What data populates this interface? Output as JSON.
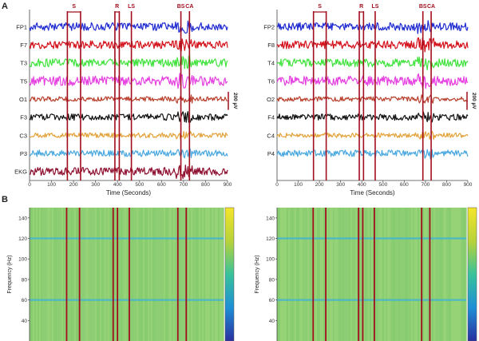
{
  "panel_labels": {
    "a": "A",
    "b": "B"
  },
  "chart_data": [
    {
      "type": "line",
      "panel": "A-left",
      "xlabel": "Time (Seconds)",
      "xlim": [
        0,
        900
      ],
      "xticks": [
        0,
        100,
        200,
        300,
        400,
        500,
        600,
        700,
        800,
        900
      ],
      "scale_bar": "200 µV",
      "series": [
        {
          "name": "FP1",
          "color": "#1f2bd1"
        },
        {
          "name": "F7",
          "color": "#d4121c"
        },
        {
          "name": "T3",
          "color": "#42e23f"
        },
        {
          "name": "T5",
          "color": "#e63fe0"
        },
        {
          "name": "O1",
          "color": "#b8402c"
        },
        {
          "name": "F3",
          "color": "#111111"
        },
        {
          "name": "C3",
          "color": "#e3a23a"
        },
        {
          "name": "P3",
          "color": "#4aa8e0"
        },
        {
          "name": "EKG",
          "color": "#8e1030"
        }
      ],
      "event_markers": [
        {
          "label": "S",
          "times": [
            172,
            232
          ]
        },
        {
          "label": "R",
          "times": [
            388,
            408
          ]
        },
        {
          "label": "LS",
          "times": [
            463
          ]
        },
        {
          "label": "BS",
          "times": [
            688
          ]
        },
        {
          "label": "CA",
          "times": [
            727
          ]
        }
      ]
    },
    {
      "type": "line",
      "panel": "A-right",
      "xlabel": "Time (Seconds)",
      "xlim": [
        0,
        900
      ],
      "xticks": [
        0,
        100,
        200,
        300,
        400,
        500,
        600,
        700,
        800,
        900
      ],
      "scale_bar": "200 µV",
      "series": [
        {
          "name": "FP2",
          "color": "#1f2bd1"
        },
        {
          "name": "F8",
          "color": "#d4121c"
        },
        {
          "name": "T4",
          "color": "#42e23f"
        },
        {
          "name": "T6",
          "color": "#e63fe0"
        },
        {
          "name": "O2",
          "color": "#b8402c"
        },
        {
          "name": "F4",
          "color": "#111111"
        },
        {
          "name": "C4",
          "color": "#e3a23a"
        },
        {
          "name": "P4",
          "color": "#4aa8e0"
        }
      ],
      "event_markers": [
        {
          "label": "S",
          "times": [
            172,
            232
          ]
        },
        {
          "label": "R",
          "times": [
            388,
            408
          ]
        },
        {
          "label": "LS",
          "times": [
            463
          ]
        },
        {
          "label": "BS",
          "times": [
            688
          ]
        },
        {
          "label": "CA",
          "times": [
            727
          ]
        }
      ]
    },
    {
      "type": "heatmap",
      "panel": "B-left",
      "ylabel": "Frequency (Hz)",
      "ylim": [
        20,
        150
      ],
      "yticks": [
        40,
        60,
        80,
        100,
        120,
        140
      ],
      "xlim": [
        0,
        900
      ],
      "highlight_bands_hz": [
        60,
        120
      ],
      "event_lines": [
        172,
        232,
        388,
        408,
        463,
        688,
        727
      ]
    },
    {
      "type": "heatmap",
      "panel": "B-right",
      "ylabel": "Frequency (Hz)",
      "ylim": [
        20,
        150
      ],
      "yticks": [
        40,
        60,
        80,
        100,
        120,
        140
      ],
      "xlim": [
        0,
        900
      ],
      "highlight_bands_hz": [
        60,
        120
      ],
      "event_lines": [
        172,
        232,
        388,
        408,
        463,
        688,
        727
      ]
    }
  ],
  "colors": {
    "marker": "#a10e1e",
    "heat_base": "#8fcf72",
    "heat_band": "#4ab6c8"
  }
}
